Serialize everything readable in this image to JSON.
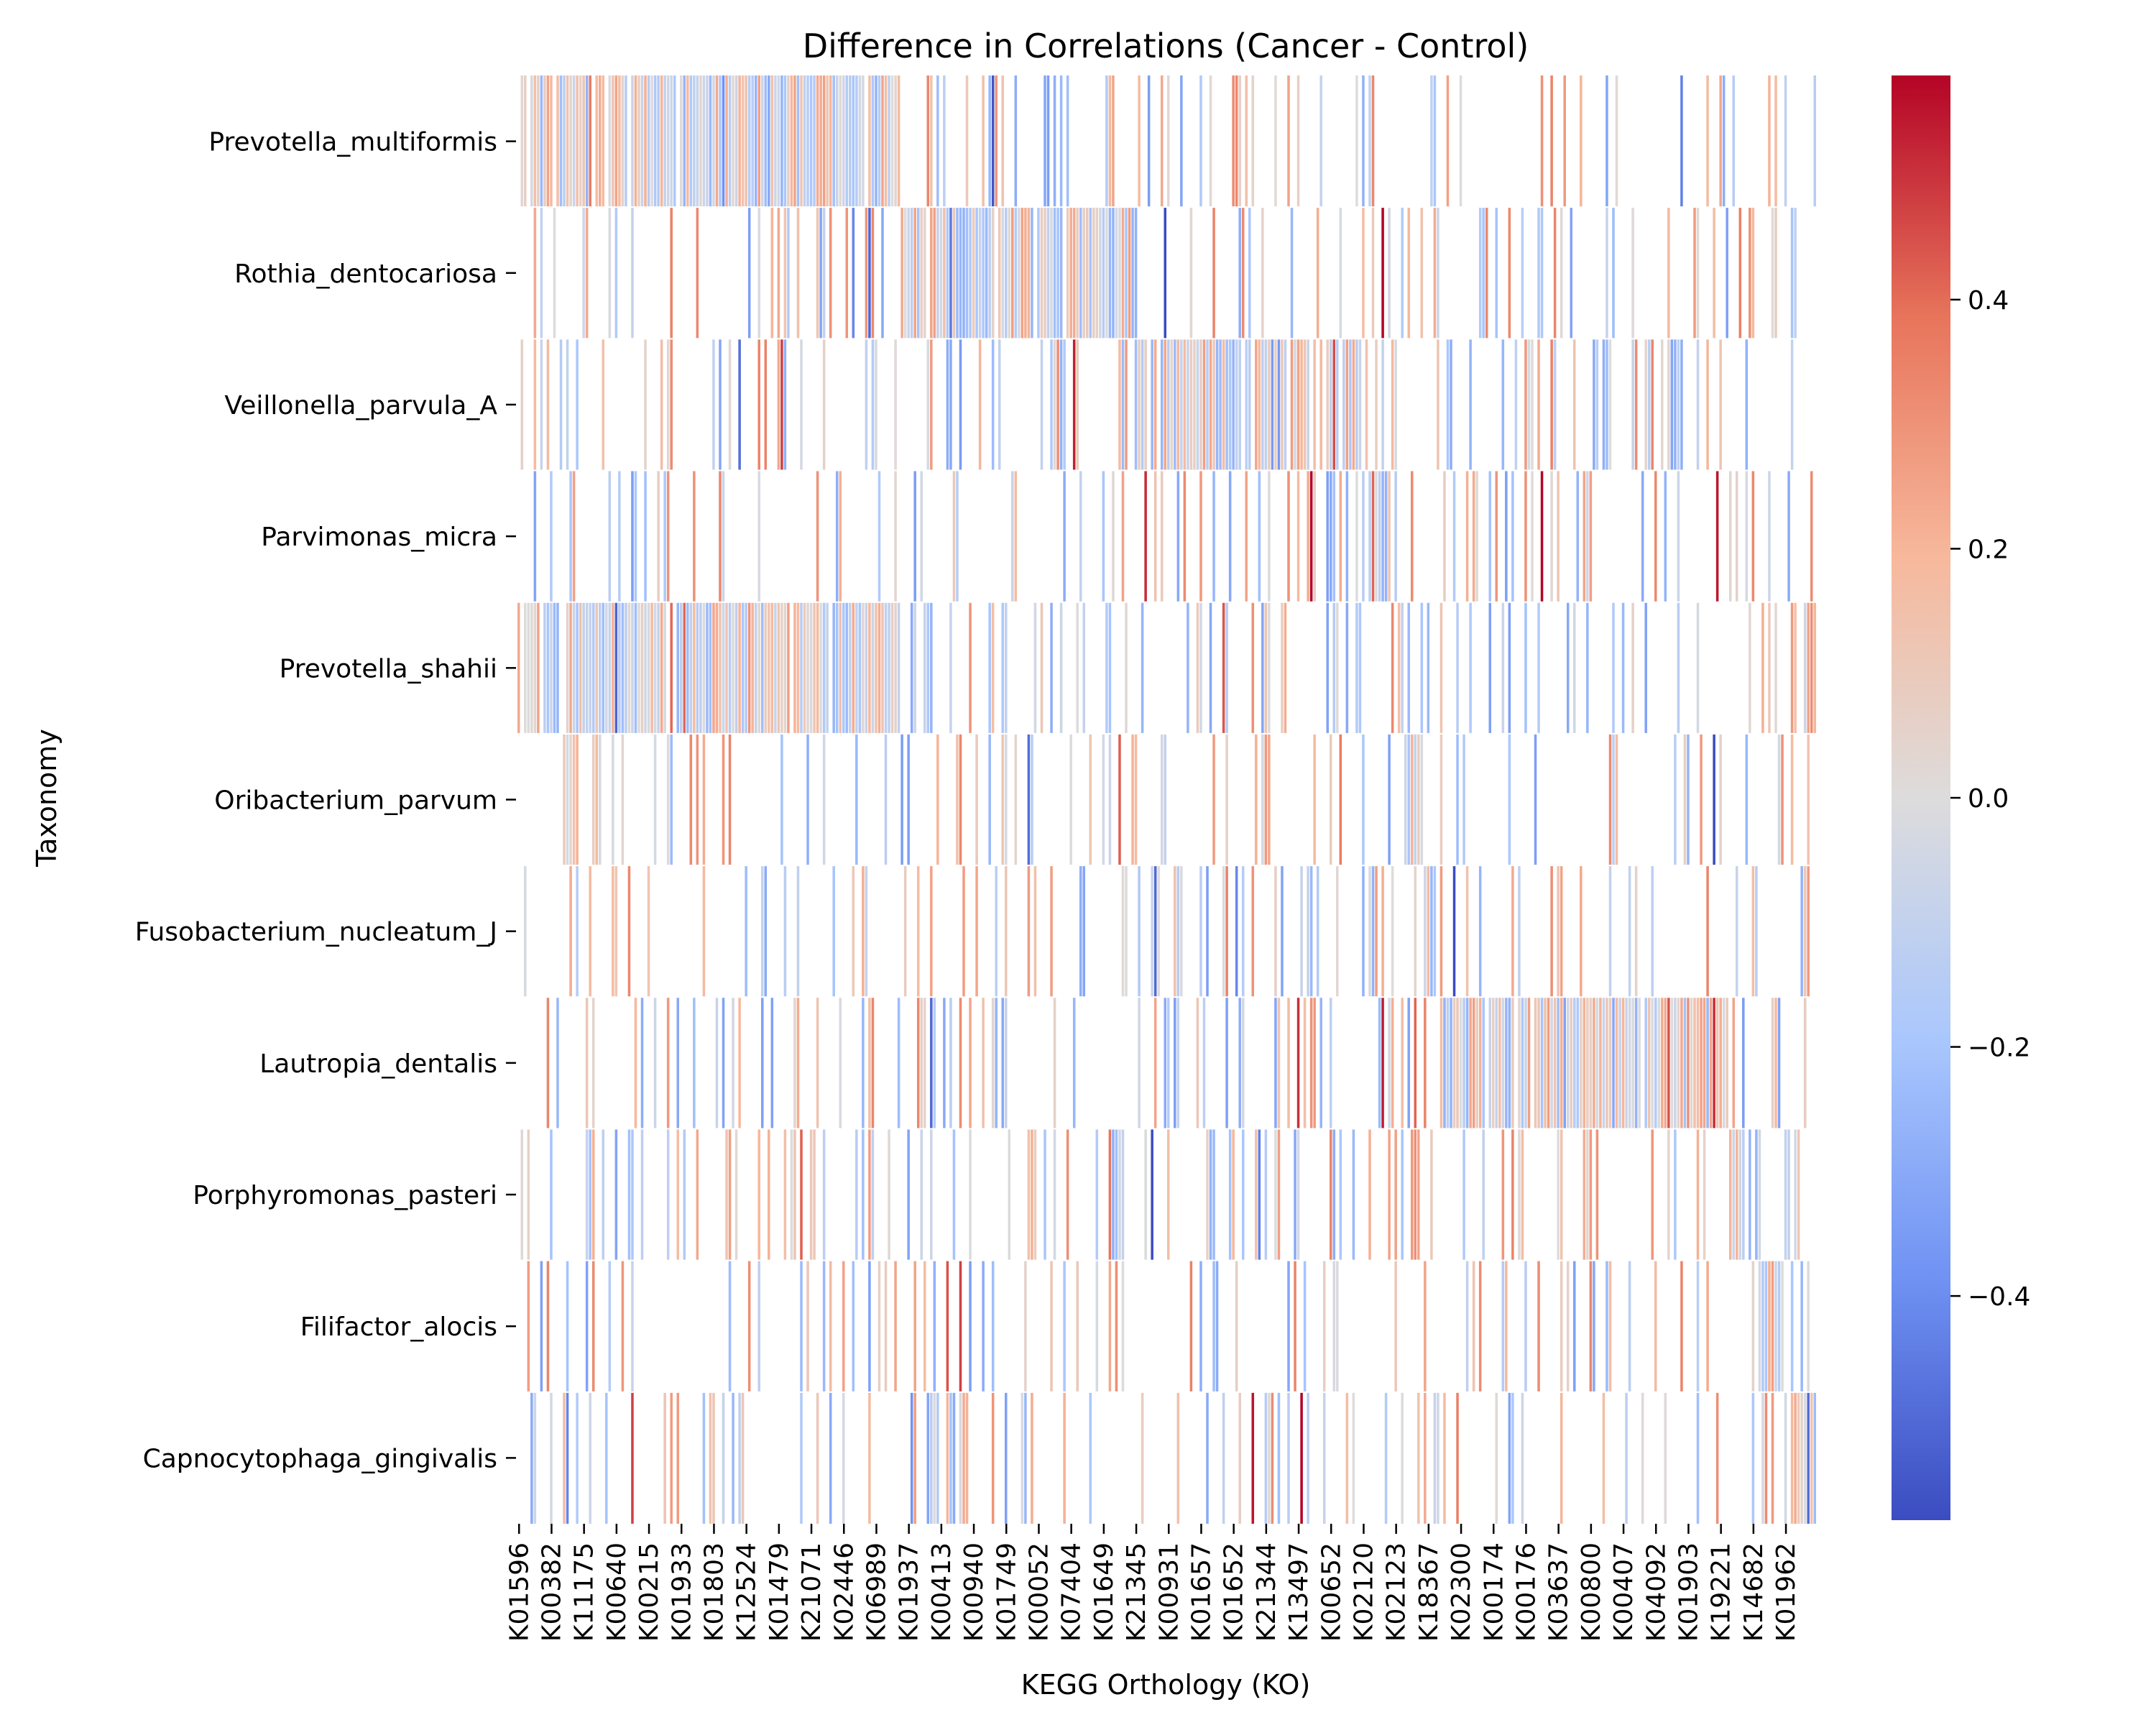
{
  "chart_data": {
    "type": "heatmap",
    "title": "Difference in Correlations (Cancer - Control)",
    "xlabel": "KEGG Orthology (KO)",
    "ylabel": "Taxonomy",
    "rows": [
      "Prevotella_multiformis",
      "Rothia_dentocariosa",
      "Veillonella_parvula_A",
      "Parvimonas_micra",
      "Prevotella_shahii",
      "Oribacterium_parvum",
      "Fusobacterium_nucleatum_J",
      "Lautropia_dentalis",
      "Porphyromonas_pasteri",
      "Filifactor_alocis",
      "Capnocytophaga_gingivalis"
    ],
    "x_tick_labels": [
      "K01596",
      "K00382",
      "K11175",
      "K00640",
      "K00215",
      "K01933",
      "K01803",
      "K12524",
      "K01479",
      "K21071",
      "K02446",
      "K06989",
      "K01937",
      "K00413",
      "K00940",
      "K01749",
      "K00052",
      "K07404",
      "K01649",
      "K21345",
      "K00931",
      "K01657",
      "K01652",
      "K21344",
      "K13497",
      "K00652",
      "K02120",
      "K02123",
      "K18367",
      "K02300",
      "K00174",
      "K00176",
      "K03637",
      "K00800",
      "K00407",
      "K04092",
      "K01903",
      "K19221",
      "K14682",
      "K01962"
    ],
    "n_columns": 400,
    "row_column_spans": [
      [
        0,
        118
      ],
      [
        118,
        190
      ],
      [
        190,
        262
      ],
      [
        262,
        273
      ],
      [
        0,
        118
      ],
      [
        273,
        279
      ],
      [
        279,
        284
      ],
      [
        284,
        373
      ],
      [
        373,
        382
      ],
      [
        382,
        390
      ],
      [
        390,
        400
      ]
    ],
    "cell_values_note": "sparse per-cell differences; most cells empty (NaN)",
    "value_range": [
      -0.58,
      0.58
    ],
    "colormap": "coolwarm",
    "colormap_stops": [
      "#3b4cc0",
      "#6f92f3",
      "#aac7fd",
      "#dddcdc",
      "#f7b89c",
      "#e7745b",
      "#b40426"
    ],
    "colorbar_ticks": [
      -0.4,
      -0.2,
      0.0,
      0.2,
      0.4
    ],
    "colorbar_tick_labels": [
      "−0.4",
      "−0.2",
      "0.0",
      "0.2",
      "0.4"
    ],
    "grid": false,
    "legend": "colorbar-right"
  }
}
